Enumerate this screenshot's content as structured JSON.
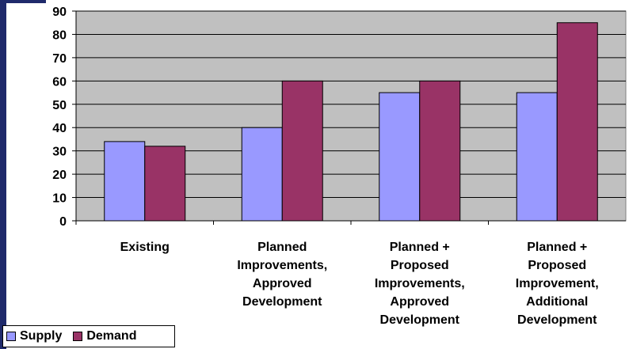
{
  "chart_data": {
    "type": "bar",
    "categories": [
      [
        "Existing"
      ],
      [
        "Planned",
        "Improvements,",
        "Approved",
        "Development"
      ],
      [
        "Planned +",
        "Proposed",
        "Improvements,",
        "Approved",
        "Development"
      ],
      [
        "Planned +",
        "Proposed",
        "Improvement,",
        "Additional",
        "Development"
      ]
    ],
    "series": [
      {
        "name": "Supply",
        "values": [
          34,
          40,
          55,
          55
        ],
        "color": "#9999ff"
      },
      {
        "name": "Demand",
        "values": [
          32,
          60,
          60,
          85
        ],
        "color": "#993366"
      }
    ],
    "ylim": [
      0,
      90
    ],
    "yticks": [
      0,
      10,
      20,
      30,
      40,
      50,
      60,
      70,
      80,
      90
    ],
    "grid": true,
    "plot_background": "#c0c0c0",
    "legend_position": "bottom-left"
  }
}
